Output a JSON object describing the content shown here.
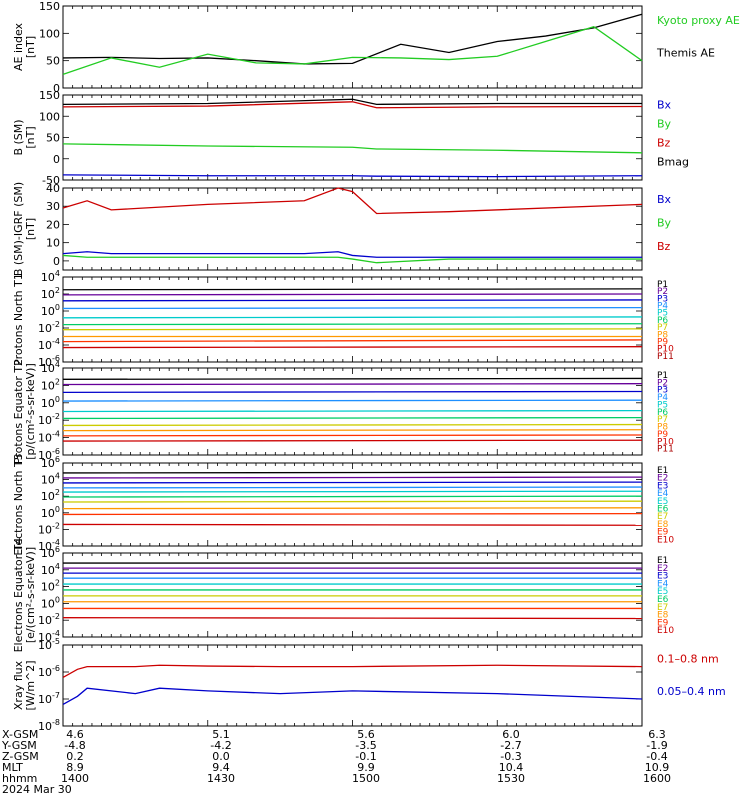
{
  "chart_data": [
    {
      "type": "line",
      "ylabel": "AE index [nT]",
      "ylim": [
        0,
        150
      ],
      "yticks": [
        "0",
        "50",
        "100",
        "150"
      ],
      "legend": [
        "Kyoto proxy AE",
        "Themis AE"
      ],
      "legend_colors": [
        "#22cc22",
        "#000000"
      ],
      "x": [
        1400,
        1410,
        1420,
        1430,
        1440,
        1450,
        1500,
        1510,
        1520,
        1530,
        1540,
        1550,
        1600
      ],
      "series": [
        {
          "name": "Themis AE",
          "color": "#000000",
          "values": [
            55,
            56,
            54,
            55,
            50,
            44,
            45,
            80,
            65,
            85,
            95,
            110,
            135
          ]
        },
        {
          "name": "Kyoto proxy AE",
          "color": "#22cc22",
          "values": [
            25,
            55,
            38,
            62,
            46,
            44,
            56,
            55,
            52,
            58,
            85,
            112,
            50
          ]
        }
      ]
    },
    {
      "type": "line",
      "ylabel": "B (SM) [nT]",
      "ylim": [
        -50,
        150
      ],
      "yticks": [
        "-50",
        "0",
        "50",
        "100",
        "150"
      ],
      "legend": [
        "Bx",
        "By",
        "Bz",
        "Bmag"
      ],
      "legend_colors": [
        "#0000cc",
        "#22cc22",
        "#cc0000",
        "#000000"
      ],
      "x": [
        1400,
        1430,
        1500,
        1505,
        1530,
        1600
      ],
      "series": [
        {
          "name": "Bmag",
          "color": "#000000",
          "values": [
            128,
            130,
            140,
            128,
            130,
            130
          ]
        },
        {
          "name": "Bz",
          "color": "#cc0000",
          "values": [
            122,
            124,
            134,
            120,
            122,
            123
          ]
        },
        {
          "name": "By",
          "color": "#22cc22",
          "values": [
            35,
            30,
            27,
            23,
            20,
            14
          ]
        },
        {
          "name": "Bx",
          "color": "#0000cc",
          "values": [
            -38,
            -40,
            -40,
            -41,
            -42,
            -40
          ]
        }
      ]
    },
    {
      "type": "line",
      "ylabel": "B (SM)-IGRF (SM) [nT]",
      "ylim": [
        -5,
        40
      ],
      "yticks": [
        "0",
        "10",
        "20",
        "30",
        "40"
      ],
      "legend": [
        "Bx",
        "By",
        "Bz"
      ],
      "legend_colors": [
        "#0000cc",
        "#22cc22",
        "#cc0000"
      ],
      "x": [
        1400,
        1405,
        1410,
        1430,
        1450,
        1457,
        1500,
        1505,
        1520,
        1600
      ],
      "series": [
        {
          "name": "Bz",
          "color": "#cc0000",
          "values": [
            29,
            33,
            28,
            31,
            33,
            40,
            38,
            26,
            27,
            31
          ]
        },
        {
          "name": "Bx",
          "color": "#0000cc",
          "values": [
            4,
            5,
            4,
            4,
            4,
            5,
            3,
            2,
            2,
            2
          ]
        },
        {
          "name": "By",
          "color": "#22cc22",
          "values": [
            3,
            2,
            2,
            2,
            2,
            2,
            1,
            -1,
            1,
            1
          ]
        }
      ]
    },
    {
      "type": "line",
      "ylabel": "Protons North T1",
      "ylim": [
        -6,
        4
      ],
      "log": true,
      "yticks": [
        "10^4",
        "10^2",
        "10^0",
        "10^-2",
        "10^-4",
        "10^-6"
      ],
      "legend": [
        "P1",
        "P2",
        "P3",
        "P4",
        "P5",
        "P6",
        "P7",
        "P8",
        "P9",
        "P10",
        "P11"
      ],
      "legend_colors": [
        "#000000",
        "#660099",
        "#0000cc",
        "#1e90ff",
        "#00cccc",
        "#00cc66",
        "#cccc00",
        "#ff9900",
        "#ff3300",
        "#cc0000",
        "#aa0000"
      ],
      "series": [
        {
          "name": "P1",
          "color": "#000000",
          "values": [
            2.5,
            2.6
          ]
        },
        {
          "name": "P2",
          "color": "#660099",
          "values": [
            1.9,
            2.0
          ]
        },
        {
          "name": "P3",
          "color": "#0000cc",
          "values": [
            1.2,
            1.3
          ]
        },
        {
          "name": "P4",
          "color": "#1e90ff",
          "values": [
            0.3,
            0.4
          ]
        },
        {
          "name": "P5",
          "color": "#00cccc",
          "values": [
            -0.8,
            -0.7
          ]
        },
        {
          "name": "P6",
          "color": "#00cc66",
          "values": [
            -1.6,
            -1.5
          ]
        },
        {
          "name": "P7",
          "color": "#cccc00",
          "values": [
            -2.2,
            -2.1
          ]
        },
        {
          "name": "P8",
          "color": "#ff9900",
          "values": [
            -3.0,
            -3.0
          ]
        },
        {
          "name": "P9",
          "color": "#ff3300",
          "values": [
            -3.6,
            -3.4
          ]
        },
        {
          "name": "P10",
          "color": "#cc0000",
          "values": [
            -4.3,
            -4.2
          ]
        }
      ]
    },
    {
      "type": "line",
      "ylabel": "Protons Equator T2 [p/(cm²-s-sr-keV)]",
      "ylim": [
        -6,
        4
      ],
      "log": true,
      "yticks": [
        "10^4",
        "10^2",
        "10^0",
        "10^-2",
        "10^-4",
        "10^-6"
      ],
      "legend": [
        "P1",
        "P2",
        "P3",
        "P4",
        "P5",
        "P6",
        "P7",
        "P8",
        "P9",
        "P10",
        "P11"
      ],
      "legend_colors": [
        "#000000",
        "#660099",
        "#0000cc",
        "#1e90ff",
        "#00cccc",
        "#00cc66",
        "#cccc00",
        "#ff9900",
        "#ff3300",
        "#cc0000",
        "#aa0000"
      ],
      "series": [
        {
          "name": "P1",
          "color": "#000000",
          "values": [
            2.7,
            2.8
          ]
        },
        {
          "name": "P2",
          "color": "#660099",
          "values": [
            2.1,
            2.2
          ]
        },
        {
          "name": "P3",
          "color": "#0000cc",
          "values": [
            1.2,
            1.3
          ]
        },
        {
          "name": "P4",
          "color": "#1e90ff",
          "values": [
            0.2,
            0.3
          ]
        },
        {
          "name": "P5",
          "color": "#00cccc",
          "values": [
            -1.0,
            -0.9
          ]
        },
        {
          "name": "P6",
          "color": "#00cc66",
          "values": [
            -1.8,
            -1.7
          ]
        },
        {
          "name": "P7",
          "color": "#cccc00",
          "values": [
            -2.6,
            -2.5
          ]
        },
        {
          "name": "P8",
          "color": "#ff9900",
          "values": [
            -3.2,
            -3.1
          ]
        },
        {
          "name": "P9",
          "color": "#ff3300",
          "values": [
            -3.8,
            -3.7
          ]
        },
        {
          "name": "P10",
          "color": "#cc0000",
          "values": [
            -4.4,
            -4.3
          ]
        }
      ]
    },
    {
      "type": "line",
      "ylabel": "Electrons North T3",
      "ylim": [
        -4,
        6
      ],
      "log": true,
      "yticks": [
        "10^6",
        "10^4",
        "10^2",
        "10^0",
        "10^-2",
        "10^-4"
      ],
      "legend": [
        "E1",
        "E2",
        "E3",
        "E4",
        "E5",
        "E6",
        "E7",
        "E8",
        "E9",
        "E10"
      ],
      "legend_colors": [
        "#000000",
        "#660099",
        "#0000cc",
        "#1e90ff",
        "#00cccc",
        "#00cc66",
        "#cccc00",
        "#ff9900",
        "#ff3300",
        "#cc0000"
      ],
      "series": [
        {
          "name": "E1",
          "color": "#000000",
          "values": [
            4.8,
            4.9
          ]
        },
        {
          "name": "E2",
          "color": "#660099",
          "values": [
            4.2,
            4.3
          ]
        },
        {
          "name": "E3",
          "color": "#0000cc",
          "values": [
            3.6,
            3.7
          ]
        },
        {
          "name": "E4",
          "color": "#1e90ff",
          "values": [
            3.0,
            3.1
          ]
        },
        {
          "name": "E5",
          "color": "#00cccc",
          "values": [
            2.5,
            2.6
          ]
        },
        {
          "name": "E6",
          "color": "#00cc66",
          "values": [
            1.9,
            2.0
          ]
        },
        {
          "name": "E7",
          "color": "#cccc00",
          "values": [
            1.3,
            1.4
          ]
        },
        {
          "name": "E8",
          "color": "#ff9900",
          "values": [
            0.5,
            0.6
          ]
        },
        {
          "name": "E9",
          "color": "#ff3300",
          "values": [
            -0.2,
            -0.1
          ]
        },
        {
          "name": "E10",
          "color": "#cc0000",
          "values": [
            -1.4,
            -1.5
          ]
        }
      ]
    },
    {
      "type": "line",
      "ylabel": "Electrons Equator T4 [e/(cm²-s-sr-keV)]",
      "ylim": [
        -4,
        6
      ],
      "log": true,
      "yticks": [
        "10^6",
        "10^4",
        "10^2",
        "10^0",
        "10^-2",
        "10^-4"
      ],
      "legend": [
        "E1",
        "E2",
        "E3",
        "E4",
        "E5",
        "E6",
        "E7",
        "E8",
        "E9",
        "E10"
      ],
      "legend_colors": [
        "#000000",
        "#660099",
        "#0000cc",
        "#1e90ff",
        "#00cccc",
        "#00cc66",
        "#cccc00",
        "#ff9900",
        "#ff3300",
        "#cc0000"
      ],
      "series": [
        {
          "name": "E1",
          "color": "#000000",
          "values": [
            4.8,
            4.8
          ]
        },
        {
          "name": "E2",
          "color": "#660099",
          "values": [
            4.2,
            4.2
          ]
        },
        {
          "name": "E3",
          "color": "#0000cc",
          "values": [
            3.6,
            3.6
          ]
        },
        {
          "name": "E4",
          "color": "#1e90ff",
          "values": [
            3.0,
            3.0
          ]
        },
        {
          "name": "E5",
          "color": "#00cccc",
          "values": [
            2.3,
            2.3
          ]
        },
        {
          "name": "E6",
          "color": "#00cc66",
          "values": [
            1.6,
            1.6
          ]
        },
        {
          "name": "E7",
          "color": "#cccc00",
          "values": [
            0.9,
            0.9
          ]
        },
        {
          "name": "E8",
          "color": "#ff9900",
          "values": [
            0.2,
            0.2
          ]
        },
        {
          "name": "E9",
          "color": "#ff3300",
          "values": [
            -0.6,
            -0.6
          ]
        },
        {
          "name": "E10",
          "color": "#cc0000",
          "values": [
            -1.7,
            -1.8
          ]
        }
      ]
    },
    {
      "type": "line",
      "ylabel": "Xray flux [W/m^2]",
      "ylim": [
        -8,
        -5
      ],
      "log": true,
      "yticks": [
        "10^-5",
        "10^-6",
        "10^-7",
        "10^-8"
      ],
      "legend": [
        "0.1–0.8 nm",
        "0.05–0.4 nm"
      ],
      "legend_colors": [
        "#cc0000",
        "#0000cc"
      ],
      "x": [
        1400,
        1403,
        1405,
        1415,
        1420,
        1430,
        1445,
        1500,
        1530,
        1600
      ],
      "series": [
        {
          "name": "0.1–0.8 nm",
          "color": "#cc0000",
          "values": [
            -6.2,
            -5.9,
            -5.8,
            -5.8,
            -5.75,
            -5.78,
            -5.8,
            -5.8,
            -5.75,
            -5.8
          ]
        },
        {
          "name": "0.05–0.4 nm",
          "color": "#0000cc",
          "values": [
            -7.2,
            -6.9,
            -6.6,
            -6.8,
            -6.6,
            -6.7,
            -6.8,
            -6.7,
            -6.8,
            -7.0
          ]
        }
      ]
    }
  ],
  "ephemeris": {
    "labels": [
      "X-GSM",
      "Y-GSM",
      "Z-GSM",
      "MLT",
      "hhmm",
      "2024 Mar 30"
    ],
    "columns": [
      [
        "4.6",
        "-4.8",
        "0.2",
        "8.9",
        "1400"
      ],
      [
        "5.1",
        "-4.2",
        "0.0",
        "9.4",
        "1430"
      ],
      [
        "5.6",
        "-3.5",
        "-0.1",
        "9.9",
        "1500"
      ],
      [
        "6.0",
        "-2.7",
        "-0.3",
        "10.4",
        "1530"
      ],
      [
        "6.3",
        "-1.9",
        "-0.4",
        "10.9",
        "1600"
      ]
    ]
  }
}
